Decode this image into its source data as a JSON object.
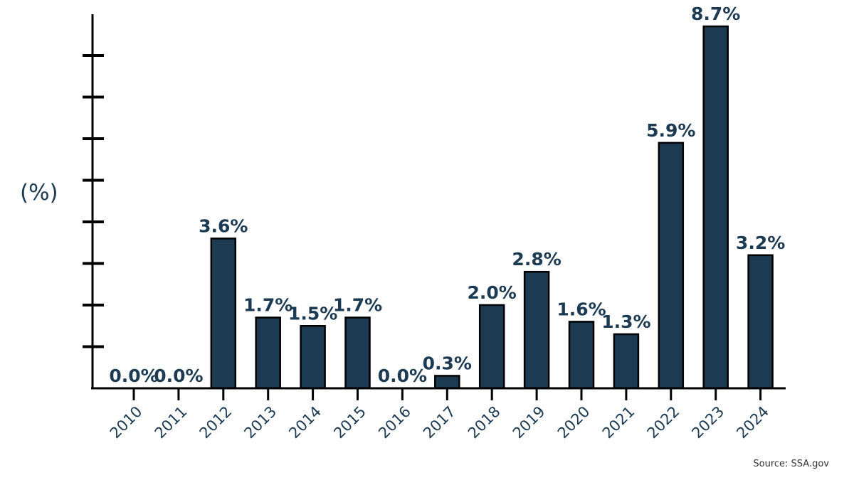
{
  "chart_data": {
    "type": "bar",
    "categories": [
      "2010",
      "2011",
      "2012",
      "2013",
      "2014",
      "2015",
      "2016",
      "2017",
      "2018",
      "2019",
      "2020",
      "2021",
      "2022",
      "2023",
      "2024"
    ],
    "values": [
      0.0,
      0.0,
      3.6,
      1.7,
      1.5,
      1.7,
      0.0,
      0.3,
      2.0,
      2.8,
      1.6,
      1.3,
      5.9,
      8.7,
      3.2
    ],
    "value_labels": [
      "0.0%",
      "0.0%",
      "3.6%",
      "1.7%",
      "1.5%",
      "1.7%",
      "0.0%",
      "0.3%",
      "2.0%",
      "2.8%",
      "1.6%",
      "1.3%",
      "5.9%",
      "8.7%",
      "3.2%"
    ],
    "title": "",
    "xlabel": "",
    "ylabel": "(%)",
    "ylim": [
      0,
      9
    ],
    "grid": false,
    "legend": "none",
    "source": "Source: SSA.gov",
    "colors": {
      "bar": "#1c3a52",
      "outline": "#000000",
      "text": "#1c3a52"
    }
  }
}
